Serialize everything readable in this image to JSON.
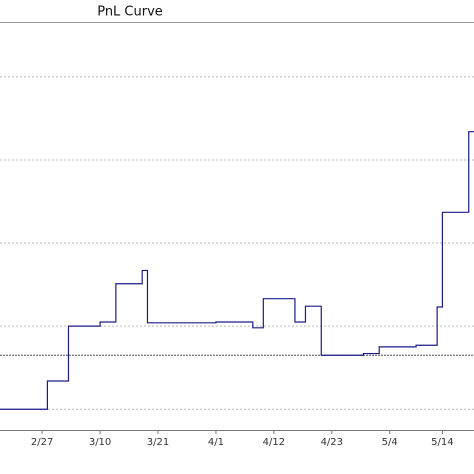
{
  "chart_data": {
    "type": "step",
    "title": "PnL Curve",
    "x": [
      "2/19",
      "2/28",
      "3/4",
      "3/10",
      "3/13",
      "3/18",
      "3/19",
      "4/1",
      "4/8",
      "4/10",
      "4/16",
      "4/18",
      "4/21",
      "4/29",
      "5/2",
      "5/9",
      "5/13",
      "5/14",
      "5/19"
    ],
    "values": [
      0,
      0.34,
      1.0,
      1.05,
      1.51,
      1.67,
      1.04,
      1.05,
      0.98,
      1.33,
      1.05,
      1.24,
      0.65,
      0.67,
      0.75,
      0.77,
      1.23,
      2.37,
      3.34
    ],
    "color": "#1c1c8a",
    "xlim": [
      "2/19",
      "5/20"
    ],
    "xticks": [
      "2/27",
      "3/10",
      "3/21",
      "4/1",
      "4/12",
      "4/23",
      "5/4",
      "5/14"
    ],
    "ylim": [
      -0.25,
      4.66
    ],
    "ygrid": [
      0,
      1,
      2,
      3,
      4
    ],
    "reference_line": 0.65,
    "grid": true
  }
}
